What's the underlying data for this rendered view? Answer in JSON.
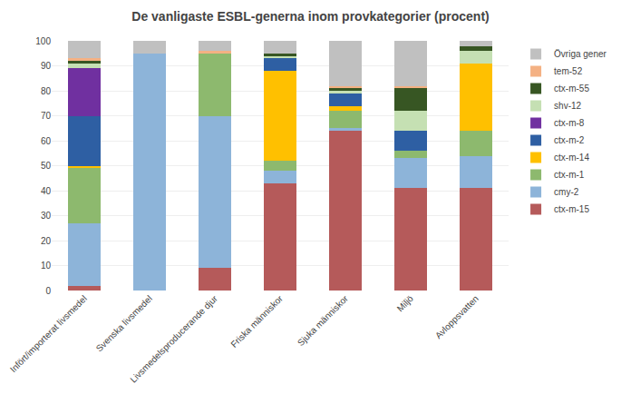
{
  "chart_data": {
    "type": "bar",
    "title": "De vanligaste ESBL-generna inom provkategorier (procent)",
    "categories": [
      "Infört/importerat livsmedel",
      "Svenska livsmedel",
      "Livsmedelsproducerande djur",
      "Friska människor",
      "Sjuka människor",
      "Miljö",
      "Avloppsvatten"
    ],
    "series": [
      {
        "name": "ctx-m-15",
        "color": "#b55a5a",
        "values": [
          2,
          0,
          9,
          43,
          64,
          41,
          41
        ]
      },
      {
        "name": "cmy-2",
        "color": "#8db4d9",
        "values": [
          25,
          95,
          61,
          5,
          1,
          12,
          13
        ]
      },
      {
        "name": "ctx-m-1",
        "color": "#8db96e",
        "values": [
          22,
          0,
          25,
          4,
          7,
          3,
          10
        ]
      },
      {
        "name": "ctx-m-14",
        "color": "#ffc000",
        "values": [
          1,
          0,
          0,
          36,
          2,
          0,
          27
        ]
      },
      {
        "name": "ctx-m-2",
        "color": "#2e5fa3",
        "values": [
          20,
          0,
          0,
          5,
          5,
          8,
          0
        ]
      },
      {
        "name": "ctx-m-8",
        "color": "#7030a0",
        "values": [
          19,
          0,
          0,
          0,
          0,
          0,
          0
        ]
      },
      {
        "name": "shv-12",
        "color": "#c5e0b3",
        "values": [
          2,
          0,
          0,
          1,
          1,
          8,
          5
        ]
      },
      {
        "name": "ctx-m-55",
        "color": "#375623",
        "values": [
          1,
          0,
          0,
          1,
          1,
          9,
          2
        ]
      },
      {
        "name": "tem-52",
        "color": "#f4b183",
        "values": [
          1,
          0,
          1,
          0,
          1,
          1,
          0
        ]
      },
      {
        "name": "Övriga gener",
        "color": "#c0c0c0",
        "values": [
          7,
          5,
          4,
          5,
          18,
          18,
          2
        ]
      }
    ],
    "stacked": true,
    "ylim": [
      0,
      100
    ],
    "yticks": [
      0,
      10,
      20,
      30,
      40,
      50,
      60,
      70,
      80,
      90,
      100
    ],
    "grid": true,
    "legend": "right"
  }
}
